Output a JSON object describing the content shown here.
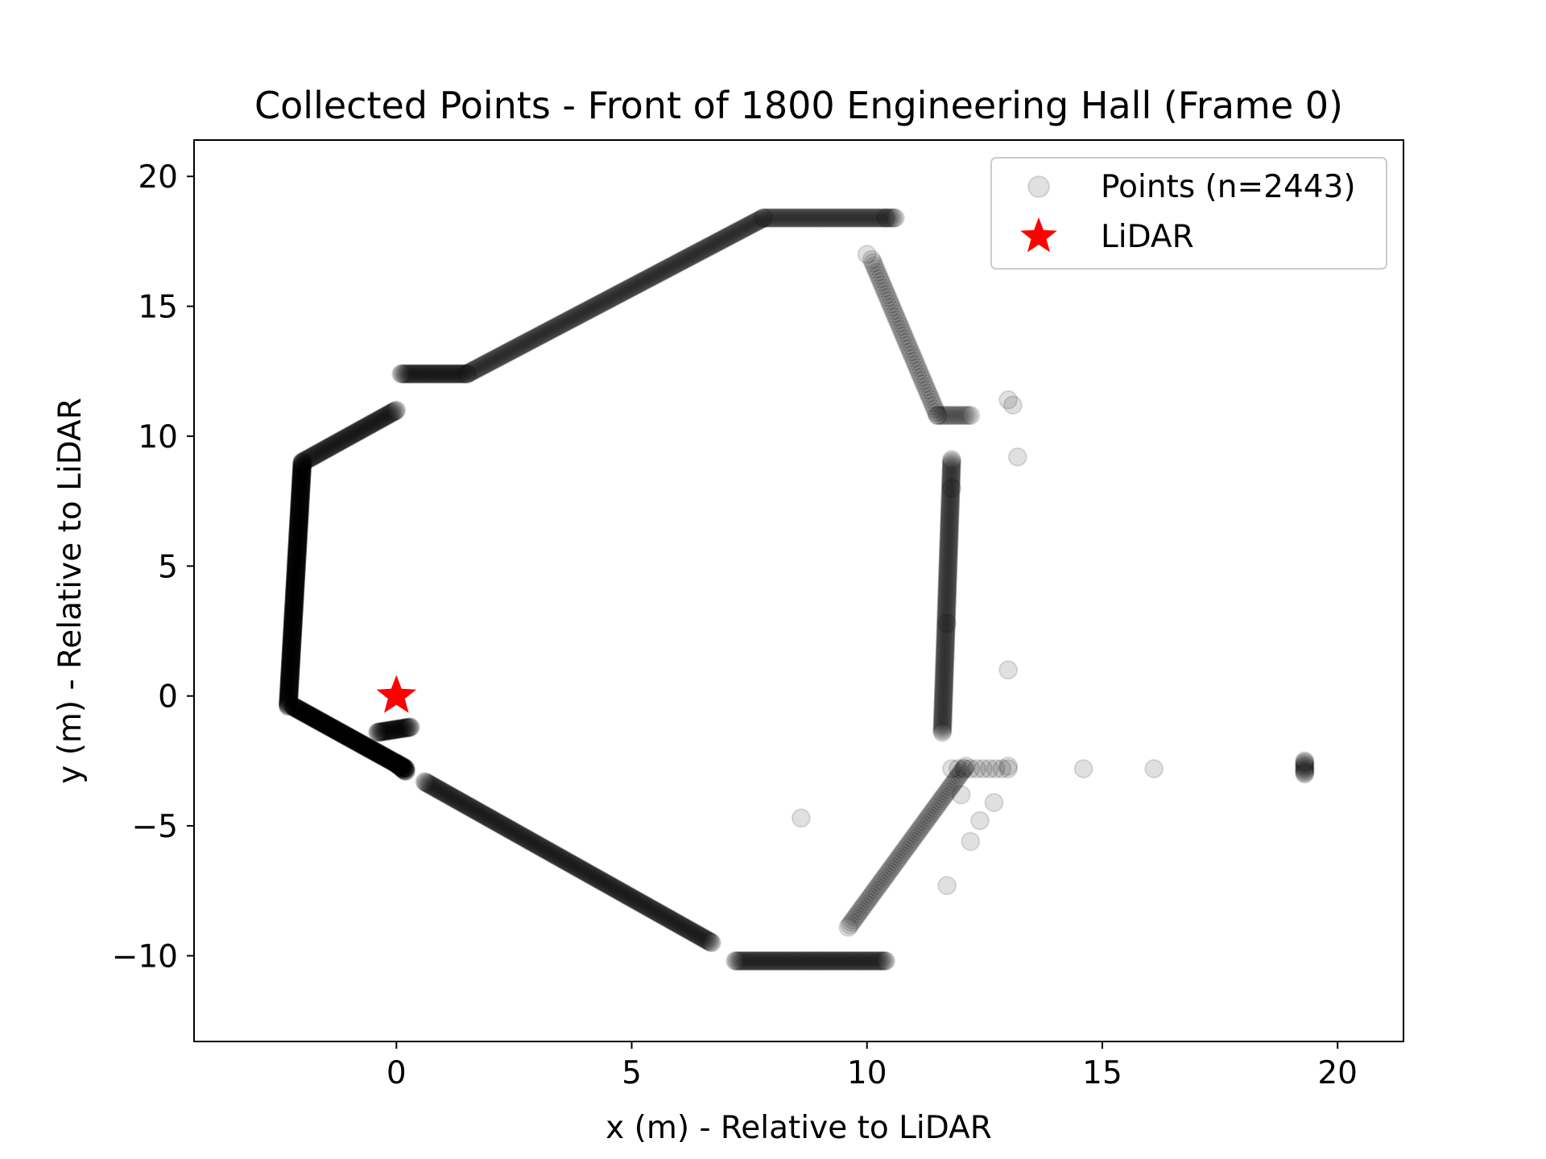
{
  "chart_data": {
    "type": "scatter",
    "title": "Collected Points - Front of 1800 Engineering Hall (Frame 0)",
    "xlabel": "x (m) - Relative to LiDAR",
    "ylabel": "y (m) - Relative to LiDAR",
    "xlim": [
      -4.3,
      21.4
    ],
    "ylim": [
      -13.3,
      21.4
    ],
    "xticks": [
      0,
      5,
      10,
      15,
      20
    ],
    "yticks": [
      -10,
      -5,
      0,
      5,
      10,
      15,
      20
    ],
    "xtick_labels": [
      "0",
      "5",
      "10",
      "15",
      "20"
    ],
    "ytick_labels": [
      "−10",
      "−5",
      "0",
      "5",
      "10",
      "15",
      "20"
    ],
    "grid": false,
    "legend_position": "upper right",
    "marker_color": "#000000",
    "highlight_color": "#ff0000",
    "series": [
      {
        "name": "Points (n=2443)",
        "marker": "circle",
        "alpha": 0.12,
        "n": 2443,
        "segments": [
          {
            "from": [
              -2.3,
              -0.4
            ],
            "to": [
              -2.0,
              9.0
            ],
            "count": 360
          },
          {
            "from": [
              -2.0,
              9.0
            ],
            "to": [
              0.0,
              11.0
            ],
            "count": 90
          },
          {
            "from": [
              -2.2,
              -0.4
            ],
            "to": [
              0.2,
              -2.8
            ],
            "count": 220
          },
          {
            "from": [
              -0.4,
              -1.4
            ],
            "to": [
              0.3,
              -1.2
            ],
            "count": 40
          },
          {
            "from": [
              0.0,
              -2.6
            ],
            "to": [
              0.2,
              -2.9
            ],
            "count": 20
          },
          {
            "from": [
              0.6,
              -3.3
            ],
            "to": [
              6.7,
              -9.5
            ],
            "count": 260
          },
          {
            "from": [
              0.1,
              12.4
            ],
            "to": [
              1.5,
              12.4
            ],
            "count": 55
          },
          {
            "from": [
              1.5,
              12.4
            ],
            "to": [
              7.8,
              18.4
            ],
            "count": 210
          },
          {
            "from": [
              7.8,
              18.4
            ],
            "to": [
              10.6,
              18.4
            ],
            "count": 80
          },
          {
            "from": [
              7.2,
              -10.2
            ],
            "to": [
              10.4,
              -10.2
            ],
            "count": 110
          },
          {
            "from": [
              10.1,
              16.8
            ],
            "to": [
              11.5,
              10.8
            ],
            "count": 50
          },
          {
            "from": [
              11.5,
              10.8
            ],
            "to": [
              12.2,
              10.8
            ],
            "count": 15
          },
          {
            "from": [
              11.8,
              9.1
            ],
            "to": [
              11.6,
              -1.4
            ],
            "count": 160
          },
          {
            "from": [
              12.1,
              -2.7
            ],
            "to": [
              9.6,
              -8.9
            ],
            "count": 70
          },
          {
            "from": [
              11.8,
              -2.8
            ],
            "to": [
              13.0,
              -2.8
            ],
            "count": 10
          },
          {
            "from": [
              19.3,
              -2.5
            ],
            "to": [
              19.3,
              -3.0
            ],
            "count": 12
          }
        ],
        "points": [
          [
            13.0,
            11.4
          ],
          [
            13.1,
            11.2
          ],
          [
            13.2,
            9.2
          ],
          [
            13.0,
            1.0
          ],
          [
            13.0,
            -2.7
          ],
          [
            14.6,
            -2.8
          ],
          [
            16.1,
            -2.8
          ],
          [
            8.6,
            -4.7
          ],
          [
            12.7,
            -4.1
          ],
          [
            12.4,
            -4.8
          ],
          [
            12.2,
            -5.6
          ],
          [
            11.7,
            -7.3
          ],
          [
            12.0,
            -3.8
          ],
          [
            11.7,
            2.8
          ],
          [
            11.8,
            8.0
          ],
          [
            10.4,
            18.4
          ],
          [
            10.0,
            17.0
          ]
        ]
      },
      {
        "name": "LiDAR",
        "marker": "star",
        "points": [
          [
            0,
            0
          ]
        ]
      }
    ]
  }
}
